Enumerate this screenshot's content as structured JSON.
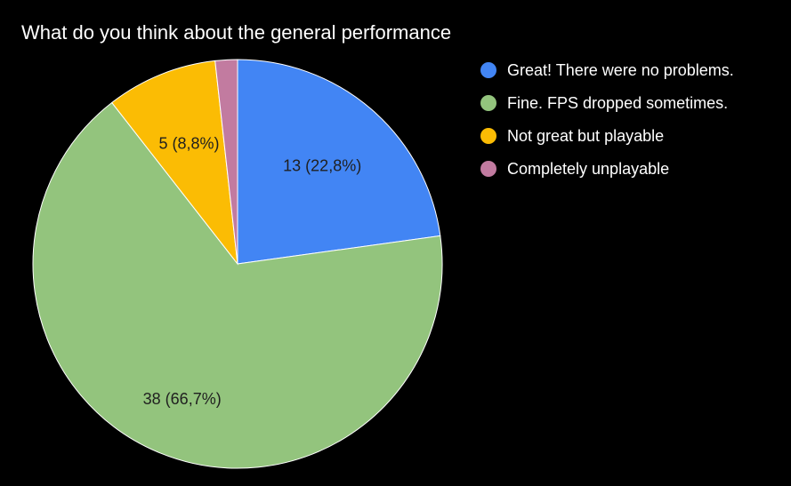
{
  "chart_data": {
    "type": "pie",
    "title": "What do you think about the general performance",
    "categories": [
      "Great! There were no problems.",
      "Fine. FPS dropped sometimes.",
      "Not great but playable",
      "Completely unplayable"
    ],
    "values": [
      13,
      38,
      5,
      1
    ],
    "data_labels": [
      "13 (22,8%)",
      "38 (66,7%)",
      "5 (8,8%)",
      ""
    ],
    "colors": [
      "#4285f4",
      "#93c47d",
      "#fbbc04",
      "#c27ba0"
    ],
    "legend_position": "right",
    "start_angle": "top, clockwise"
  }
}
